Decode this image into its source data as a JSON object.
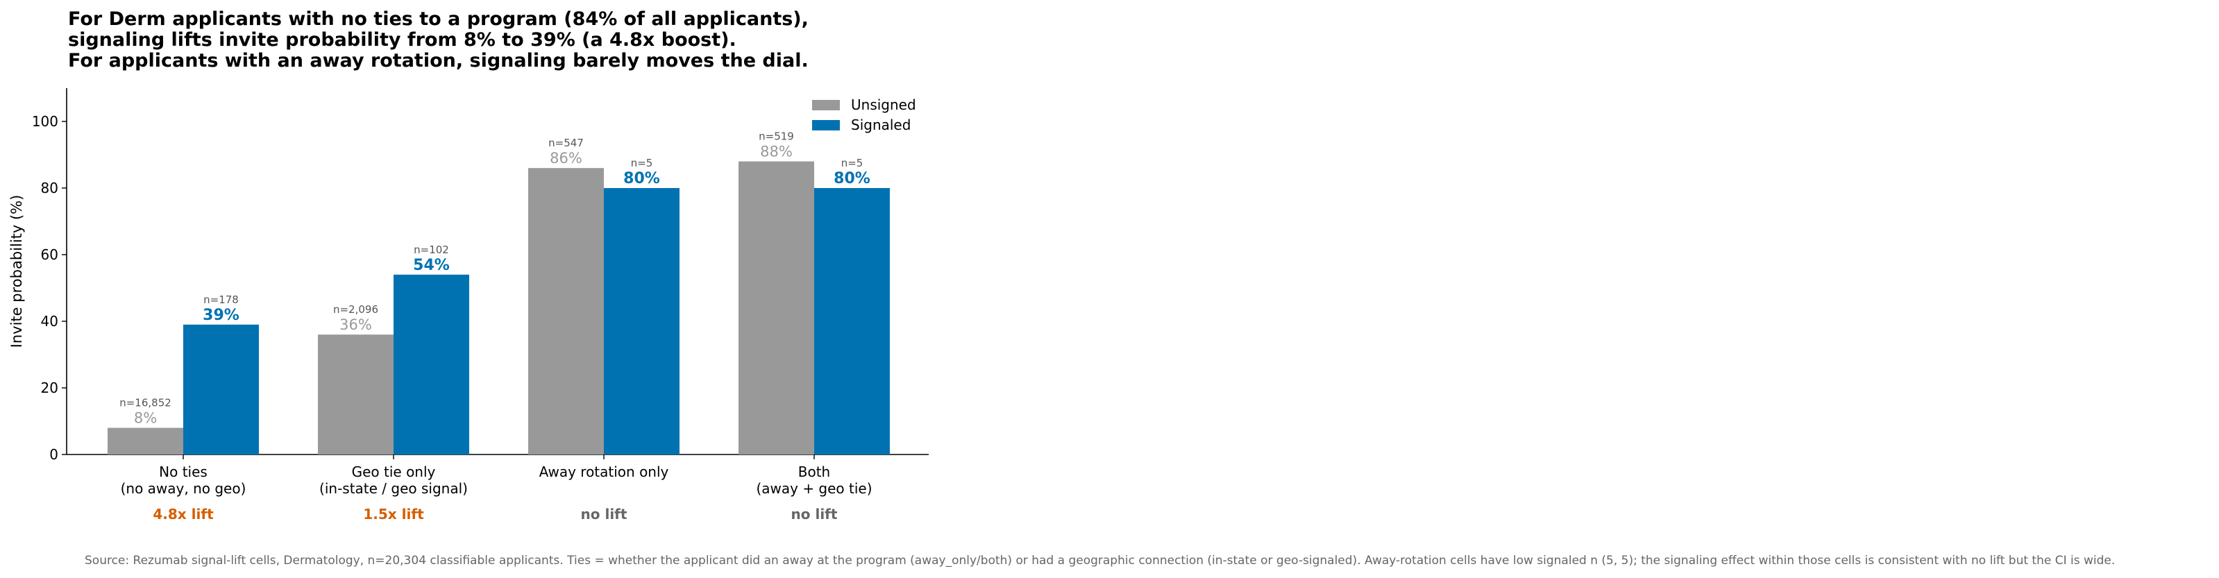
{
  "chart_data": {
    "type": "bar",
    "title_lines": [
      "For Derm applicants with no ties to a program (84% of all applicants),",
      "signaling lifts invite probability from 8% to 39% (a 4.8x boost).",
      "For applicants with an away rotation, signaling barely moves the dial."
    ],
    "ylabel": "Invite probability (%)",
    "xlabel": "",
    "ylim": [
      0,
      110
    ],
    "yticks": [
      0,
      20,
      40,
      60,
      80,
      100
    ],
    "grid": false,
    "legend_position": "top-right",
    "categories": [
      [
        "No ties",
        "(no away, no geo)"
      ],
      [
        "Geo tie only",
        "(in-state / geo signal)"
      ],
      [
        "Away rotation only"
      ],
      [
        "Both",
        "(away + geo tie)"
      ]
    ],
    "series": [
      {
        "name": "Unsigned",
        "color": "#999999",
        "values": [
          8,
          36,
          86,
          88
        ],
        "value_labels": [
          "8%",
          "36%",
          "86%",
          "88%"
        ],
        "n_labels": [
          "n=16,852",
          "n=2,096",
          "n=547",
          "n=519"
        ]
      },
      {
        "name": "Signaled",
        "color": "#0072b2",
        "values": [
          39,
          54,
          80,
          80
        ],
        "value_labels": [
          "39%",
          "54%",
          "80%",
          "80%"
        ],
        "n_labels": [
          "n=178",
          "n=102",
          "n=5",
          "n=5"
        ]
      }
    ],
    "lift_labels": [
      {
        "text": "4.8x lift",
        "color": "#d55e00"
      },
      {
        "text": "1.5x lift",
        "color": "#d55e00"
      },
      {
        "text": "no lift",
        "color": "#666666"
      },
      {
        "text": "no lift",
        "color": "#666666"
      }
    ],
    "source": "Source: Rezumab signal-lift cells, Dermatology, n=20,304 classifiable applicants. Ties = whether the applicant did an away at the program (away_only/both) or had a geographic connection (in-state or geo-signaled). Away-rotation cells have low signaled n (5, 5); the signaling effect within those cells is consistent with no lift but the CI is wide."
  }
}
